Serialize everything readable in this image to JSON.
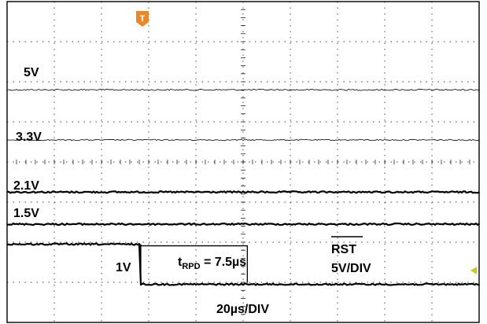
{
  "chart_data": {
    "type": "line",
    "title": "",
    "xlabel": "",
    "ylabel": "",
    "time_scale": "20µs/DIV",
    "rst_scale": "5V/DIV",
    "grid": true,
    "x_divisions": 10,
    "y_divisions": 8,
    "series": [
      {
        "name": "5V",
        "label": "5V",
        "baseline_div": 5.8,
        "noise": 0.9,
        "width": 0.8
      },
      {
        "name": "3.3V",
        "label": "3.3V",
        "baseline_div": 4.55,
        "noise": 0.8,
        "width": 0.8
      },
      {
        "name": "2.1V",
        "label": "2.1V",
        "baseline_div": 3.25,
        "noise": 1.0,
        "width": 2.2
      },
      {
        "name": "1.5V",
        "label": "1.5V",
        "baseline_div": 2.45,
        "noise": 1.0,
        "width": 2.2
      }
    ],
    "rst": {
      "name": "RST",
      "label_main": "RST",
      "label_scale": "5V/DIV",
      "threshold_label": "1V",
      "high_div": 1.95,
      "low_div": 0.95,
      "fall_time_div": 2.83,
      "delay_label_main": "t",
      "delay_label_sub": "RPD",
      "delay_label_rest": " = 7.5µs",
      "delay_us": 7.5
    },
    "trigger_marker": {
      "icon": "trigger-T-icon",
      "color": "#E8872B",
      "label": "T"
    },
    "level_marker": {
      "icon": "level-arrow-icon",
      "color": "#C9C91E"
    }
  }
}
